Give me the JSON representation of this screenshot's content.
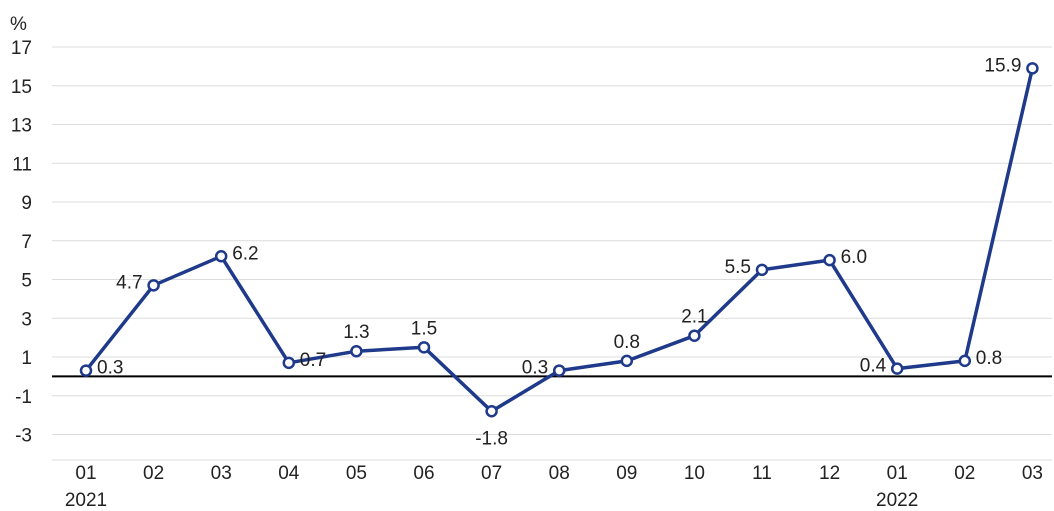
{
  "chart_data": {
    "type": "line",
    "title": "",
    "ylabel": "%",
    "xlabel": "",
    "categories": [
      "01",
      "02",
      "03",
      "04",
      "05",
      "06",
      "07",
      "08",
      "09",
      "10",
      "11",
      "12",
      "01",
      "02",
      "03"
    ],
    "year_labels": [
      {
        "index": 0,
        "label": "2021"
      },
      {
        "index": 12,
        "label": "2022"
      }
    ],
    "series": [
      {
        "values": [
          0.3,
          4.7,
          6.2,
          0.7,
          1.3,
          1.5,
          -1.8,
          0.3,
          0.8,
          2.1,
          5.5,
          6.0,
          0.4,
          0.8,
          15.9
        ],
        "labels": [
          "0.3",
          "4.7",
          "6.2",
          "0.7",
          "1.3",
          "1.5",
          "-1.8",
          "0.3",
          "0.8",
          "2.1",
          "5.5",
          "6.0",
          "0.4",
          "0.8",
          "15.9"
        ],
        "label_positions": [
          "right",
          "left",
          "right",
          "right",
          "above",
          "above",
          "below",
          "left",
          "above",
          "above",
          "left",
          "right",
          "left",
          "right",
          "left"
        ]
      }
    ],
    "yticks": [
      17,
      15,
      13,
      11,
      9,
      7,
      5,
      3,
      1,
      -1,
      -3
    ],
    "ylim": [
      -4.5,
      17
    ],
    "grid": true,
    "legend": "none"
  },
  "colors": {
    "line": "#1f3a8a",
    "marker_fill": "#ffffff",
    "grid": "#dcdcdc",
    "baseline": "#000000"
  }
}
